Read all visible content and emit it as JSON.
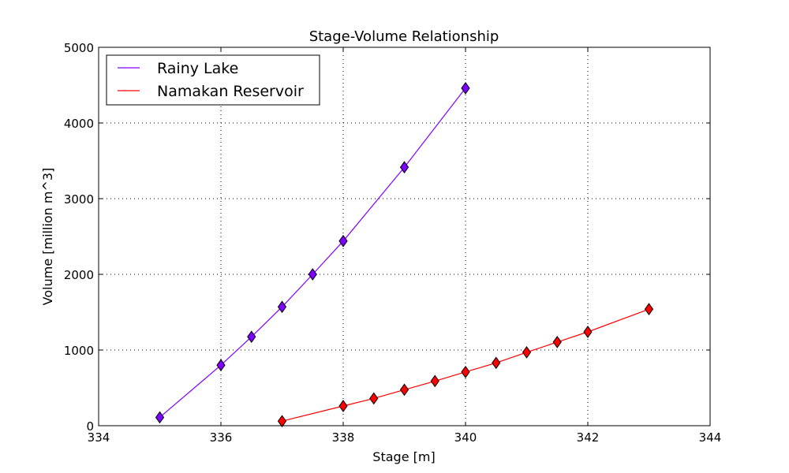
{
  "chart_data": {
    "type": "line",
    "title": "Stage-Volume Relationship",
    "xlabel": "Stage [m]",
    "ylabel": "Volume [million m^3]",
    "xlim": [
      334,
      344
    ],
    "ylim": [
      0,
      5000
    ],
    "x_ticks": [
      334,
      336,
      338,
      340,
      342,
      344
    ],
    "y_ticks": [
      0,
      1000,
      2000,
      3000,
      4000,
      5000
    ],
    "grid": true,
    "legend_position": "top-left",
    "series": [
      {
        "name": "Rainy Lake",
        "color": "#7f00ff",
        "marker": "diamond",
        "x": [
          335,
          336,
          336.5,
          337,
          337.5,
          338,
          339,
          340
        ],
        "y": [
          110,
          800,
          1175,
          1570,
          2000,
          2440,
          3415,
          4460
        ]
      },
      {
        "name": "Namakan Reservoir",
        "color": "#ff0000",
        "marker": "diamond",
        "x": [
          337,
          338,
          338.5,
          339,
          339.5,
          340,
          340.5,
          341,
          341.5,
          342,
          343
        ],
        "y": [
          60,
          260,
          360,
          475,
          590,
          710,
          830,
          970,
          1105,
          1240,
          1540
        ]
      }
    ]
  }
}
